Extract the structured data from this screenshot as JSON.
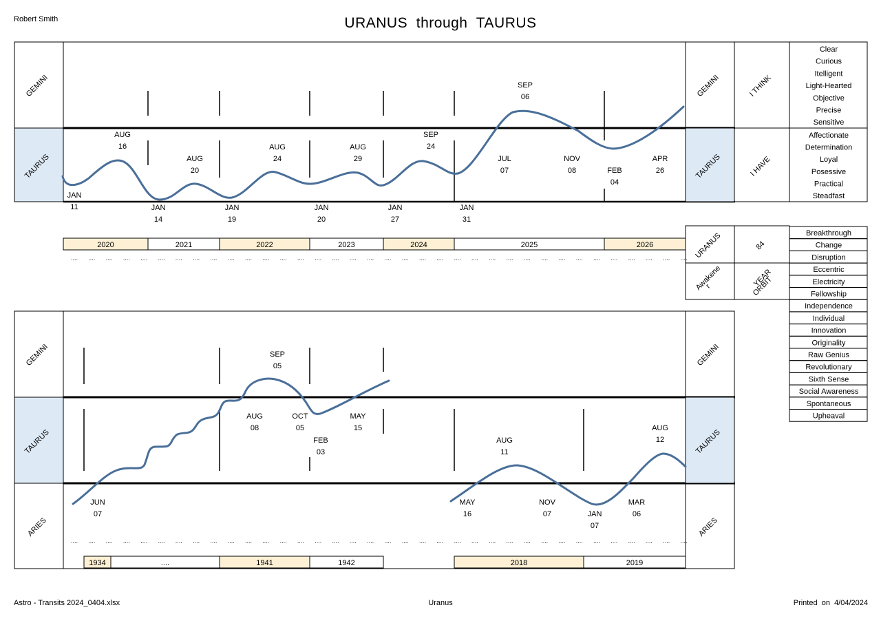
{
  "header": {
    "name": "Robert Smith",
    "title": "URANUS  through  TAURUS"
  },
  "footer": {
    "file": "Astro - Transits 2024_0404.xlsx",
    "planet": "Uranus",
    "printed_label": "Printed  on",
    "printed_date": "4/04/2024"
  },
  "keywords_think": [
    "Clear",
    "Curious",
    "Itelligent",
    "Light-Hearted",
    "Objective",
    "Precise",
    "Sensitive"
  ],
  "keywords_have": [
    "Affectionate",
    "Determination",
    "Loyal",
    "Posessive",
    "Practical",
    "Steadfast"
  ],
  "keywords_uranus": [
    "Breakthrough",
    "Change",
    "Disruption",
    "Eccentric",
    "Electricity",
    "Fellowship",
    "Independence",
    "Individual",
    "Innovation",
    "Originality",
    "Raw Genius",
    "Revolutionary",
    "Sixth Sense",
    "Social Awareness",
    "Spontaneous",
    "Upheaval"
  ],
  "labels": {
    "gemini": "GEMINI",
    "taurus": "TAURUS",
    "aries": "ARIES",
    "i_think": "I THINK",
    "i_have": "I HAVE",
    "uranus": "URANUS",
    "orbit_years": "84",
    "awakener": "Awakene\nr",
    "year_orbit": "YEAR\nORBIT",
    "ellipsis": "...."
  },
  "colors": {
    "curve": "#4a6f99",
    "taurus_fill": "#dde9f5",
    "year_fill": "#fdf0d5"
  },
  "chart_data": [
    {
      "type": "line",
      "title": "URANUS  through  TAURUS",
      "period": "2020 - 2026",
      "y_bands": [
        "TAURUS",
        "GEMINI"
      ],
      "years": [
        "2020",
        "2021",
        "2022",
        "2023",
        "2024",
        "2025",
        "2026"
      ],
      "highlight_years": [
        "2020",
        "2022",
        "2024",
        "2026"
      ],
      "events": [
        {
          "date": "JAN 11",
          "sign": "TAURUS",
          "kind": "min"
        },
        {
          "date": "AUG 16",
          "sign": "TAURUS",
          "kind": "max"
        },
        {
          "date": "JAN 14",
          "sign": "TAURUS",
          "kind": "min"
        },
        {
          "date": "AUG 20",
          "sign": "TAURUS",
          "kind": "max"
        },
        {
          "date": "JAN 19",
          "sign": "TAURUS",
          "kind": "min"
        },
        {
          "date": "AUG 24",
          "sign": "TAURUS",
          "kind": "max"
        },
        {
          "date": "JAN 20",
          "sign": "TAURUS",
          "kind": "min"
        },
        {
          "date": "AUG 29",
          "sign": "TAURUS",
          "kind": "max"
        },
        {
          "date": "JAN 27",
          "sign": "TAURUS",
          "kind": "min"
        },
        {
          "date": "SEP 24",
          "sign": "TAURUS",
          "kind": "max"
        },
        {
          "date": "JAN 31",
          "sign": "TAURUS",
          "kind": "min"
        },
        {
          "date": "JUL 07",
          "sign": "GEMINI",
          "kind": "ingress"
        },
        {
          "date": "SEP 06",
          "sign": "GEMINI",
          "kind": "max"
        },
        {
          "date": "NOV 08",
          "sign": "TAURUS",
          "kind": "egress"
        },
        {
          "date": "FEB 04",
          "sign": "TAURUS",
          "kind": "min"
        },
        {
          "date": "APR 26",
          "sign": "GEMINI",
          "kind": "ingress"
        }
      ]
    },
    {
      "type": "line",
      "period": "1934 - 1942",
      "y_bands": [
        "ARIES",
        "TAURUS",
        "GEMINI"
      ],
      "years": [
        "1934",
        "....",
        "1941",
        "1942"
      ],
      "highlight_years": [
        "1934",
        "1941"
      ],
      "events": [
        {
          "date": "JUN 07",
          "sign": "TAURUS",
          "kind": "ingress"
        },
        {
          "date": "AUG 08",
          "sign": "GEMINI",
          "kind": "ingress"
        },
        {
          "date": "SEP 05",
          "sign": "GEMINI",
          "kind": "max"
        },
        {
          "date": "OCT 05",
          "sign": "TAURUS",
          "kind": "egress"
        },
        {
          "date": "FEB 03",
          "sign": "TAURUS",
          "kind": "min"
        },
        {
          "date": "MAY 15",
          "sign": "GEMINI",
          "kind": "ingress"
        }
      ]
    },
    {
      "type": "line",
      "period": "2018 - 2019",
      "y_bands": [
        "ARIES",
        "TAURUS"
      ],
      "years": [
        "2018",
        "2019"
      ],
      "highlight_years": [
        "2018"
      ],
      "events": [
        {
          "date": "MAY 16",
          "sign": "TAURUS",
          "kind": "ingress"
        },
        {
          "date": "AUG 11",
          "sign": "TAURUS",
          "kind": "max"
        },
        {
          "date": "NOV 07",
          "sign": "ARIES",
          "kind": "egress"
        },
        {
          "date": "JAN 07",
          "sign": "ARIES",
          "kind": "min"
        },
        {
          "date": "MAR 06",
          "sign": "TAURUS",
          "kind": "ingress"
        },
        {
          "date": "AUG 12",
          "sign": "TAURUS",
          "kind": "max"
        }
      ]
    }
  ]
}
